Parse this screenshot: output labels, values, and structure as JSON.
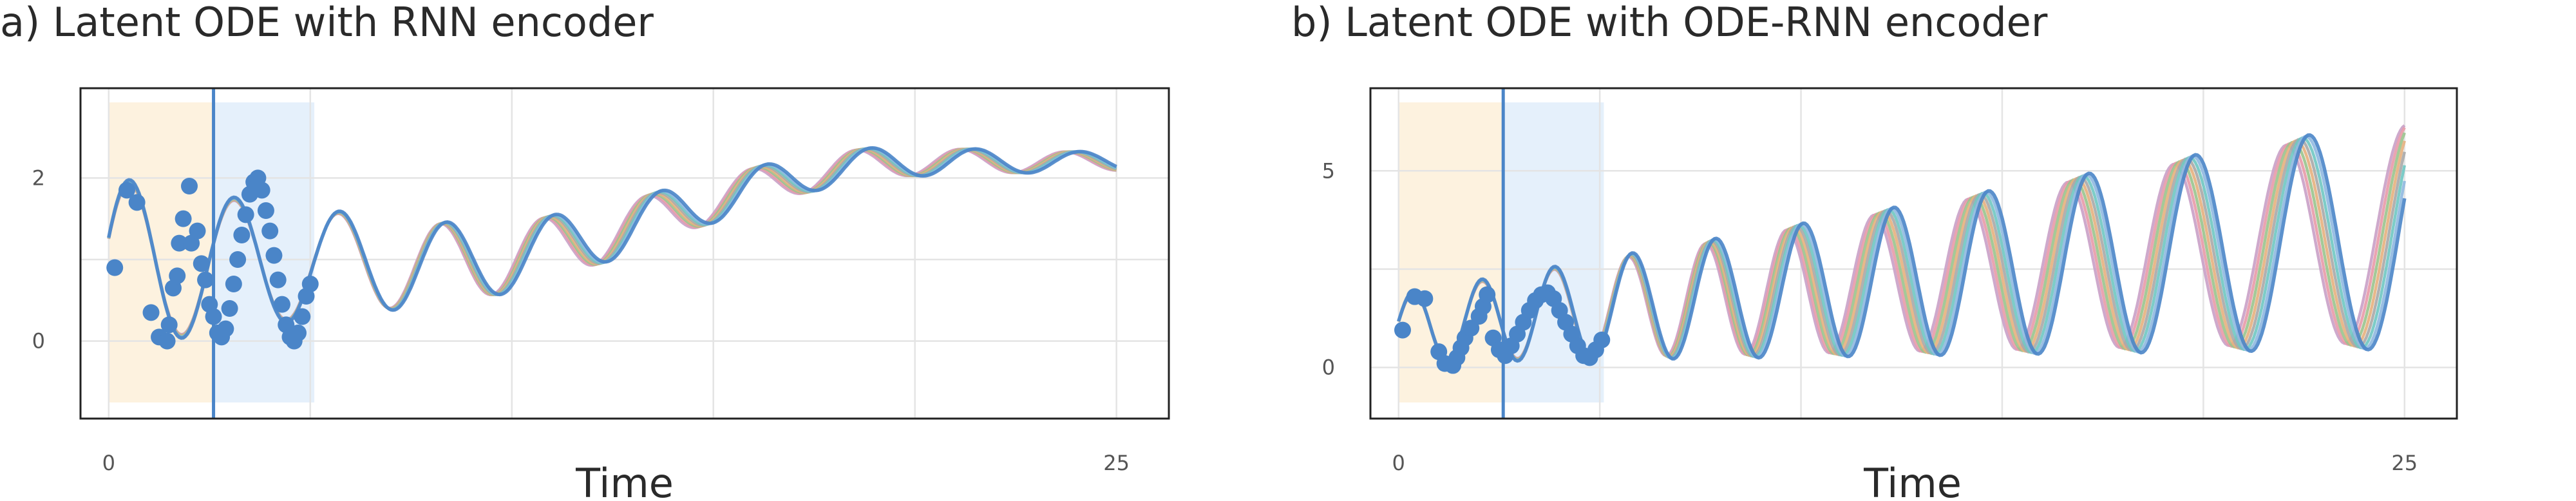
{
  "colors": {
    "observed": "#4a85c8",
    "observed_window": "#fdf2df",
    "predict_window": "#e5f0fb",
    "cutoff_line": "#4a85c8",
    "samples": [
      "#c9a0c6",
      "#e89aa8",
      "#9ac38d",
      "#e5b07e",
      "#a8a8a8",
      "#6fc7c2",
      "#8fb8e0",
      "#4a85c8"
    ]
  },
  "chart_data": [
    {
      "id": "a",
      "type": "line",
      "title": "a) Latent ODE with RNN encoder",
      "xlabel": "Time",
      "ylabel": "",
      "xlim": [
        -0.7,
        26.3
      ],
      "ylim": [
        -0.95,
        3.1
      ],
      "xticks": [
        0,
        25
      ],
      "xtick_labels": [
        "0",
        "25"
      ],
      "x_gridlines": [
        0,
        5,
        10,
        15,
        20,
        25
      ],
      "yticks": [
        0,
        2
      ],
      "ytick_labels": [
        "0",
        "2"
      ],
      "y_gridlines": [
        0,
        1,
        2
      ],
      "observed_interval": [
        0,
        2.6
      ],
      "prediction_interval": [
        2.6,
        5.1
      ],
      "cutoff": 2.6,
      "sample_curves": {
        "count": 8,
        "t_max": 25,
        "ramp_start": 8,
        "ramp_end": 20,
        "model_a": {
          "amplitude": 1.05,
          "decay": 0.09,
          "period": 2.6,
          "center": 0.95,
          "center_end": 2.2,
          "phase_spread": 0.38,
          "amp_spread": 0.05
        },
        "model_b": null
      },
      "observations": [
        {
          "t": 0.15,
          "y": 0.9
        },
        {
          "t": 0.45,
          "y": 1.85
        },
        {
          "t": 0.7,
          "y": 1.7
        },
        {
          "t": 1.05,
          "y": 0.35
        },
        {
          "t": 1.25,
          "y": 0.05
        },
        {
          "t": 1.45,
          "y": 0.0
        },
        {
          "t": 1.5,
          "y": 0.2
        },
        {
          "t": 1.6,
          "y": 0.65
        },
        {
          "t": 1.7,
          "y": 0.8
        },
        {
          "t": 1.75,
          "y": 1.2
        },
        {
          "t": 1.85,
          "y": 1.5
        },
        {
          "t": 2.0,
          "y": 1.9
        },
        {
          "t": 2.05,
          "y": 1.2
        },
        {
          "t": 2.2,
          "y": 1.35
        },
        {
          "t": 2.3,
          "y": 0.95
        },
        {
          "t": 2.4,
          "y": 0.75
        },
        {
          "t": 2.5,
          "y": 0.45
        },
        {
          "t": 2.6,
          "y": 0.3
        },
        {
          "t": 2.7,
          "y": 0.1
        },
        {
          "t": 2.8,
          "y": 0.05
        },
        {
          "t": 2.9,
          "y": 0.15
        },
        {
          "t": 3.0,
          "y": 0.4
        },
        {
          "t": 3.1,
          "y": 0.7
        },
        {
          "t": 3.2,
          "y": 1.0
        },
        {
          "t": 3.3,
          "y": 1.3
        },
        {
          "t": 3.4,
          "y": 1.55
        },
        {
          "t": 3.5,
          "y": 1.8
        },
        {
          "t": 3.6,
          "y": 1.95
        },
        {
          "t": 3.7,
          "y": 2.0
        },
        {
          "t": 3.8,
          "y": 1.85
        },
        {
          "t": 3.9,
          "y": 1.6
        },
        {
          "t": 4.0,
          "y": 1.35
        },
        {
          "t": 4.1,
          "y": 1.05
        },
        {
          "t": 4.2,
          "y": 0.75
        },
        {
          "t": 4.3,
          "y": 0.45
        },
        {
          "t": 4.4,
          "y": 0.2
        },
        {
          "t": 4.5,
          "y": 0.05
        },
        {
          "t": 4.6,
          "y": 0.0
        },
        {
          "t": 4.7,
          "y": 0.1
        },
        {
          "t": 4.8,
          "y": 0.3
        },
        {
          "t": 4.9,
          "y": 0.55
        },
        {
          "t": 5.0,
          "y": 0.7
        }
      ]
    },
    {
      "id": "b",
      "type": "line",
      "title": "b) Latent ODE with ODE-RNN encoder",
      "xlabel": "Time",
      "ylabel": "",
      "xlim": [
        -0.7,
        26.3
      ],
      "ylim": [
        -1.3,
        7.1
      ],
      "xticks": [
        0,
        25
      ],
      "xtick_labels": [
        "0",
        "25"
      ],
      "x_gridlines": [
        0,
        5,
        10,
        15,
        20,
        25
      ],
      "yticks": [
        0,
        5
      ],
      "ytick_labels": [
        "0",
        "5"
      ],
      "y_gridlines": [
        0,
        2.5,
        5
      ],
      "observed_interval": [
        0,
        2.6
      ],
      "prediction_interval": [
        2.6,
        5.1
      ],
      "cutoff": 2.6,
      "sample_curves": {
        "count": 8,
        "t_max": 25,
        "ramp_start": 0,
        "ramp_end": 0,
        "model_a": null,
        "model_b": {
          "base_amplitude": 0.85,
          "amp_growth": 2.0,
          "base_center": 1.0,
          "center_growth": 2.4,
          "period": 1.65,
          "period_growth": 0.6,
          "phase_spread": 0.42,
          "amp_spread": 0.06
        }
      },
      "observations": [
        {
          "t": 0.1,
          "y": 0.95
        },
        {
          "t": 0.4,
          "y": 1.8
        },
        {
          "t": 0.65,
          "y": 1.75
        },
        {
          "t": 1.0,
          "y": 0.4
        },
        {
          "t": 1.15,
          "y": 0.1
        },
        {
          "t": 1.35,
          "y": 0.05
        },
        {
          "t": 1.45,
          "y": 0.25
        },
        {
          "t": 1.55,
          "y": 0.5
        },
        {
          "t": 1.65,
          "y": 0.75
        },
        {
          "t": 1.8,
          "y": 1.0
        },
        {
          "t": 2.0,
          "y": 1.3
        },
        {
          "t": 2.1,
          "y": 1.55
        },
        {
          "t": 2.2,
          "y": 1.85
        },
        {
          "t": 2.35,
          "y": 0.75
        },
        {
          "t": 2.5,
          "y": 0.45
        },
        {
          "t": 2.65,
          "y": 0.3
        },
        {
          "t": 2.8,
          "y": 0.55
        },
        {
          "t": 2.95,
          "y": 0.85
        },
        {
          "t": 3.1,
          "y": 1.15
        },
        {
          "t": 3.25,
          "y": 1.45
        },
        {
          "t": 3.4,
          "y": 1.7
        },
        {
          "t": 3.55,
          "y": 1.85
        },
        {
          "t": 3.7,
          "y": 1.9
        },
        {
          "t": 3.85,
          "y": 1.75
        },
        {
          "t": 4.0,
          "y": 1.45
        },
        {
          "t": 4.15,
          "y": 1.15
        },
        {
          "t": 4.3,
          "y": 0.85
        },
        {
          "t": 4.45,
          "y": 0.55
        },
        {
          "t": 4.6,
          "y": 0.3
        },
        {
          "t": 4.75,
          "y": 0.25
        },
        {
          "t": 4.9,
          "y": 0.45
        },
        {
          "t": 5.05,
          "y": 0.7
        }
      ]
    }
  ]
}
